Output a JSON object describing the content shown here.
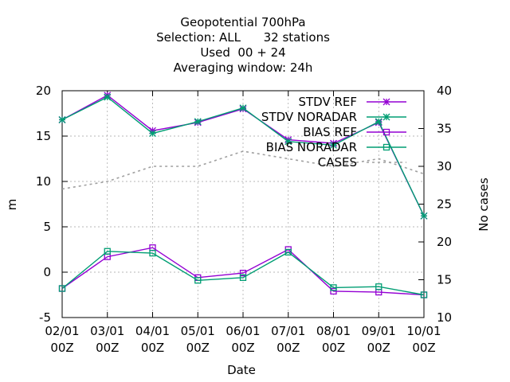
{
  "chart_data": {
    "type": "line",
    "title_lines": [
      "Geopotential 700hPa",
      "Selection: ALL      32 stations",
      "Used  00 + 24",
      "Averaging window: 24h"
    ],
    "xlabel": "Date",
    "ylabel": "m",
    "y2label": "No cases",
    "categories": [
      {
        "line1": "02/01",
        "line2": "00Z"
      },
      {
        "line1": "03/01",
        "line2": "00Z"
      },
      {
        "line1": "04/01",
        "line2": "00Z"
      },
      {
        "line1": "05/01",
        "line2": "00Z"
      },
      {
        "line1": "06/01",
        "line2": "00Z"
      },
      {
        "line1": "07/01",
        "line2": "00Z"
      },
      {
        "line1": "08/01",
        "line2": "00Z"
      },
      {
        "line1": "09/01",
        "line2": "00Z"
      },
      {
        "line1": "10/01",
        "line2": "00Z"
      }
    ],
    "ylim": [
      -5,
      20
    ],
    "yticks": [
      -5,
      0,
      5,
      10,
      15,
      20
    ],
    "y2lim": [
      10,
      40
    ],
    "y2ticks": [
      10,
      15,
      20,
      25,
      30,
      35,
      40
    ],
    "grid": true,
    "legend_position": "top-right",
    "series": [
      {
        "name": "STDV REF",
        "color": "#9400d3",
        "marker": "star",
        "dash": false,
        "axis": "y1",
        "values": [
          16.8,
          19.5,
          15.6,
          16.5,
          18.0,
          14.6,
          14.2,
          16.5,
          6.2
        ]
      },
      {
        "name": "STDV NORADAR",
        "color": "#009e73",
        "marker": "star",
        "dash": false,
        "axis": "y1",
        "values": [
          16.8,
          19.3,
          15.3,
          16.6,
          18.1,
          14.4,
          14.0,
          16.6,
          6.2
        ]
      },
      {
        "name": "BIAS REF",
        "color": "#9400d3",
        "marker": "square",
        "dash": false,
        "axis": "y1",
        "values": [
          -1.8,
          1.7,
          2.7,
          -0.6,
          -0.1,
          2.5,
          -2.1,
          -2.2,
          -2.5
        ]
      },
      {
        "name": "BIAS NORADAR",
        "color": "#009e73",
        "marker": "square",
        "dash": false,
        "axis": "y1",
        "values": [
          -1.8,
          2.3,
          2.1,
          -0.9,
          -0.6,
          2.2,
          -1.7,
          -1.6,
          -2.5
        ]
      },
      {
        "name": "CASES",
        "color": "#a0a0a0",
        "marker": "none",
        "dash": true,
        "axis": "y2",
        "values": [
          27,
          28,
          30,
          30,
          32,
          31,
          30,
          31,
          29
        ]
      }
    ]
  }
}
